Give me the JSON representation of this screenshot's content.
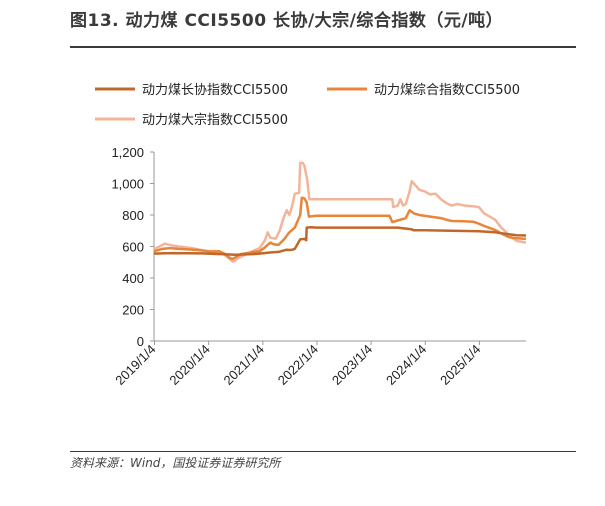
{
  "figure": {
    "title": "图13. 动力煤 CCI5500 长协/大宗/综合指数（元/吨）",
    "source": "资料来源：Wind，国投证券证券研究所"
  },
  "chart_data": {
    "type": "line",
    "title": "",
    "xlabel": "",
    "ylabel": "",
    "ylim": [
      0,
      1200
    ],
    "yticks": [
      0,
      200,
      400,
      600,
      800,
      1000,
      1200
    ],
    "ytick_labels": [
      "0",
      "200",
      "400",
      "600",
      "800",
      "1,000",
      "1,200"
    ],
    "xlim": [
      2019.0,
      2025.87
    ],
    "xticks": [
      2019.01,
      2020.01,
      2021.01,
      2022.01,
      2023.01,
      2024.01,
      2025.01
    ],
    "xtick_labels": [
      "2019/1/4",
      "2020/1/4",
      "2021/1/4",
      "2022/1/4",
      "2023/1/4",
      "2024/1/4",
      "2025/1/4"
    ],
    "grid": false,
    "legend_position": "top",
    "series": [
      {
        "name": "动力煤长协指数CCI5500",
        "color": "#c0672a",
        "points": [
          [
            2019.0,
            555
          ],
          [
            2019.3,
            558
          ],
          [
            2019.6,
            557
          ],
          [
            2019.9,
            556
          ],
          [
            2020.1,
            553
          ],
          [
            2020.3,
            551
          ],
          [
            2020.5,
            547
          ],
          [
            2020.7,
            550
          ],
          [
            2020.9,
            553
          ],
          [
            2021.1,
            560
          ],
          [
            2021.2,
            563
          ],
          [
            2021.3,
            566
          ],
          [
            2021.4,
            575
          ],
          [
            2021.45,
            580
          ],
          [
            2021.5,
            578
          ],
          [
            2021.55,
            580
          ],
          [
            2021.6,
            585
          ],
          [
            2021.7,
            645
          ],
          [
            2021.78,
            648
          ],
          [
            2021.81,
            640
          ],
          [
            2021.82,
            720
          ],
          [
            2021.9,
            722
          ],
          [
            2022.0,
            720
          ],
          [
            2022.5,
            720
          ],
          [
            2023.0,
            720
          ],
          [
            2023.5,
            720
          ],
          [
            2023.75,
            710
          ],
          [
            2023.8,
            703
          ],
          [
            2024.0,
            703
          ],
          [
            2024.5,
            700
          ],
          [
            2025.0,
            697
          ],
          [
            2025.3,
            690
          ],
          [
            2025.5,
            680
          ],
          [
            2025.7,
            672
          ],
          [
            2025.87,
            670
          ]
        ]
      },
      {
        "name": "动力煤综合指数CCI5500",
        "color": "#e8853a",
        "points": [
          [
            2019.0,
            570
          ],
          [
            2019.15,
            585
          ],
          [
            2019.3,
            590
          ],
          [
            2019.45,
            585
          ],
          [
            2019.6,
            583
          ],
          [
            2019.8,
            578
          ],
          [
            2019.95,
            572
          ],
          [
            2020.1,
            566
          ],
          [
            2020.2,
            570
          ],
          [
            2020.3,
            555
          ],
          [
            2020.4,
            527
          ],
          [
            2020.45,
            520
          ],
          [
            2020.5,
            530
          ],
          [
            2020.6,
            552
          ],
          [
            2020.8,
            563
          ],
          [
            2020.95,
            570
          ],
          [
            2021.05,
            595
          ],
          [
            2021.15,
            625
          ],
          [
            2021.2,
            615
          ],
          [
            2021.3,
            610
          ],
          [
            2021.4,
            645
          ],
          [
            2021.5,
            690
          ],
          [
            2021.6,
            720
          ],
          [
            2021.65,
            760
          ],
          [
            2021.7,
            800
          ],
          [
            2021.73,
            910
          ],
          [
            2021.78,
            905
          ],
          [
            2021.82,
            880
          ],
          [
            2021.86,
            790
          ],
          [
            2022.0,
            795
          ],
          [
            2022.5,
            795
          ],
          [
            2023.0,
            795
          ],
          [
            2023.35,
            795
          ],
          [
            2023.4,
            755
          ],
          [
            2023.5,
            765
          ],
          [
            2023.65,
            780
          ],
          [
            2023.72,
            830
          ],
          [
            2023.8,
            810
          ],
          [
            2023.9,
            800
          ],
          [
            2024.1,
            790
          ],
          [
            2024.3,
            780
          ],
          [
            2024.4,
            770
          ],
          [
            2024.5,
            762
          ],
          [
            2024.7,
            760
          ],
          [
            2024.9,
            757
          ],
          [
            2025.0,
            745
          ],
          [
            2025.1,
            730
          ],
          [
            2025.2,
            718
          ],
          [
            2025.3,
            705
          ],
          [
            2025.4,
            685
          ],
          [
            2025.55,
            660
          ],
          [
            2025.7,
            652
          ],
          [
            2025.87,
            648
          ]
        ]
      },
      {
        "name": "动力煤大宗指数CCI5500",
        "color": "#f4b49a",
        "points": [
          [
            2019.0,
            585
          ],
          [
            2019.1,
            600
          ],
          [
            2019.2,
            618
          ],
          [
            2019.35,
            605
          ],
          [
            2019.5,
            598
          ],
          [
            2019.7,
            590
          ],
          [
            2019.9,
            575
          ],
          [
            2020.0,
            570
          ],
          [
            2020.15,
            572
          ],
          [
            2020.25,
            560
          ],
          [
            2020.35,
            535
          ],
          [
            2020.45,
            505
          ],
          [
            2020.5,
            510
          ],
          [
            2020.55,
            525
          ],
          [
            2020.7,
            550
          ],
          [
            2020.85,
            575
          ],
          [
            2020.95,
            590
          ],
          [
            2021.05,
            640
          ],
          [
            2021.1,
            690
          ],
          [
            2021.15,
            655
          ],
          [
            2021.25,
            650
          ],
          [
            2021.32,
            700
          ],
          [
            2021.4,
            790
          ],
          [
            2021.45,
            830
          ],
          [
            2021.5,
            800
          ],
          [
            2021.55,
            855
          ],
          [
            2021.6,
            935
          ],
          [
            2021.68,
            940
          ],
          [
            2021.7,
            1130
          ],
          [
            2021.75,
            1130
          ],
          [
            2021.78,
            1110
          ],
          [
            2021.83,
            1025
          ],
          [
            2021.87,
            900
          ],
          [
            2022.0,
            900
          ],
          [
            2022.5,
            900
          ],
          [
            2023.0,
            900
          ],
          [
            2023.4,
            900
          ],
          [
            2023.42,
            850
          ],
          [
            2023.5,
            860
          ],
          [
            2023.55,
            900
          ],
          [
            2023.6,
            860
          ],
          [
            2023.65,
            870
          ],
          [
            2023.72,
            950
          ],
          [
            2023.76,
            1015
          ],
          [
            2023.8,
            1000
          ],
          [
            2023.9,
            960
          ],
          [
            2024.0,
            950
          ],
          [
            2024.1,
            930
          ],
          [
            2024.2,
            935
          ],
          [
            2024.3,
            900
          ],
          [
            2024.4,
            875
          ],
          [
            2024.5,
            860
          ],
          [
            2024.55,
            865
          ],
          [
            2024.6,
            870
          ],
          [
            2024.7,
            862
          ],
          [
            2024.8,
            858
          ],
          [
            2024.9,
            855
          ],
          [
            2025.0,
            850
          ],
          [
            2025.05,
            830
          ],
          [
            2025.1,
            810
          ],
          [
            2025.2,
            790
          ],
          [
            2025.3,
            770
          ],
          [
            2025.4,
            725
          ],
          [
            2025.5,
            690
          ],
          [
            2025.6,
            660
          ],
          [
            2025.7,
            635
          ],
          [
            2025.87,
            625
          ]
        ]
      }
    ]
  }
}
